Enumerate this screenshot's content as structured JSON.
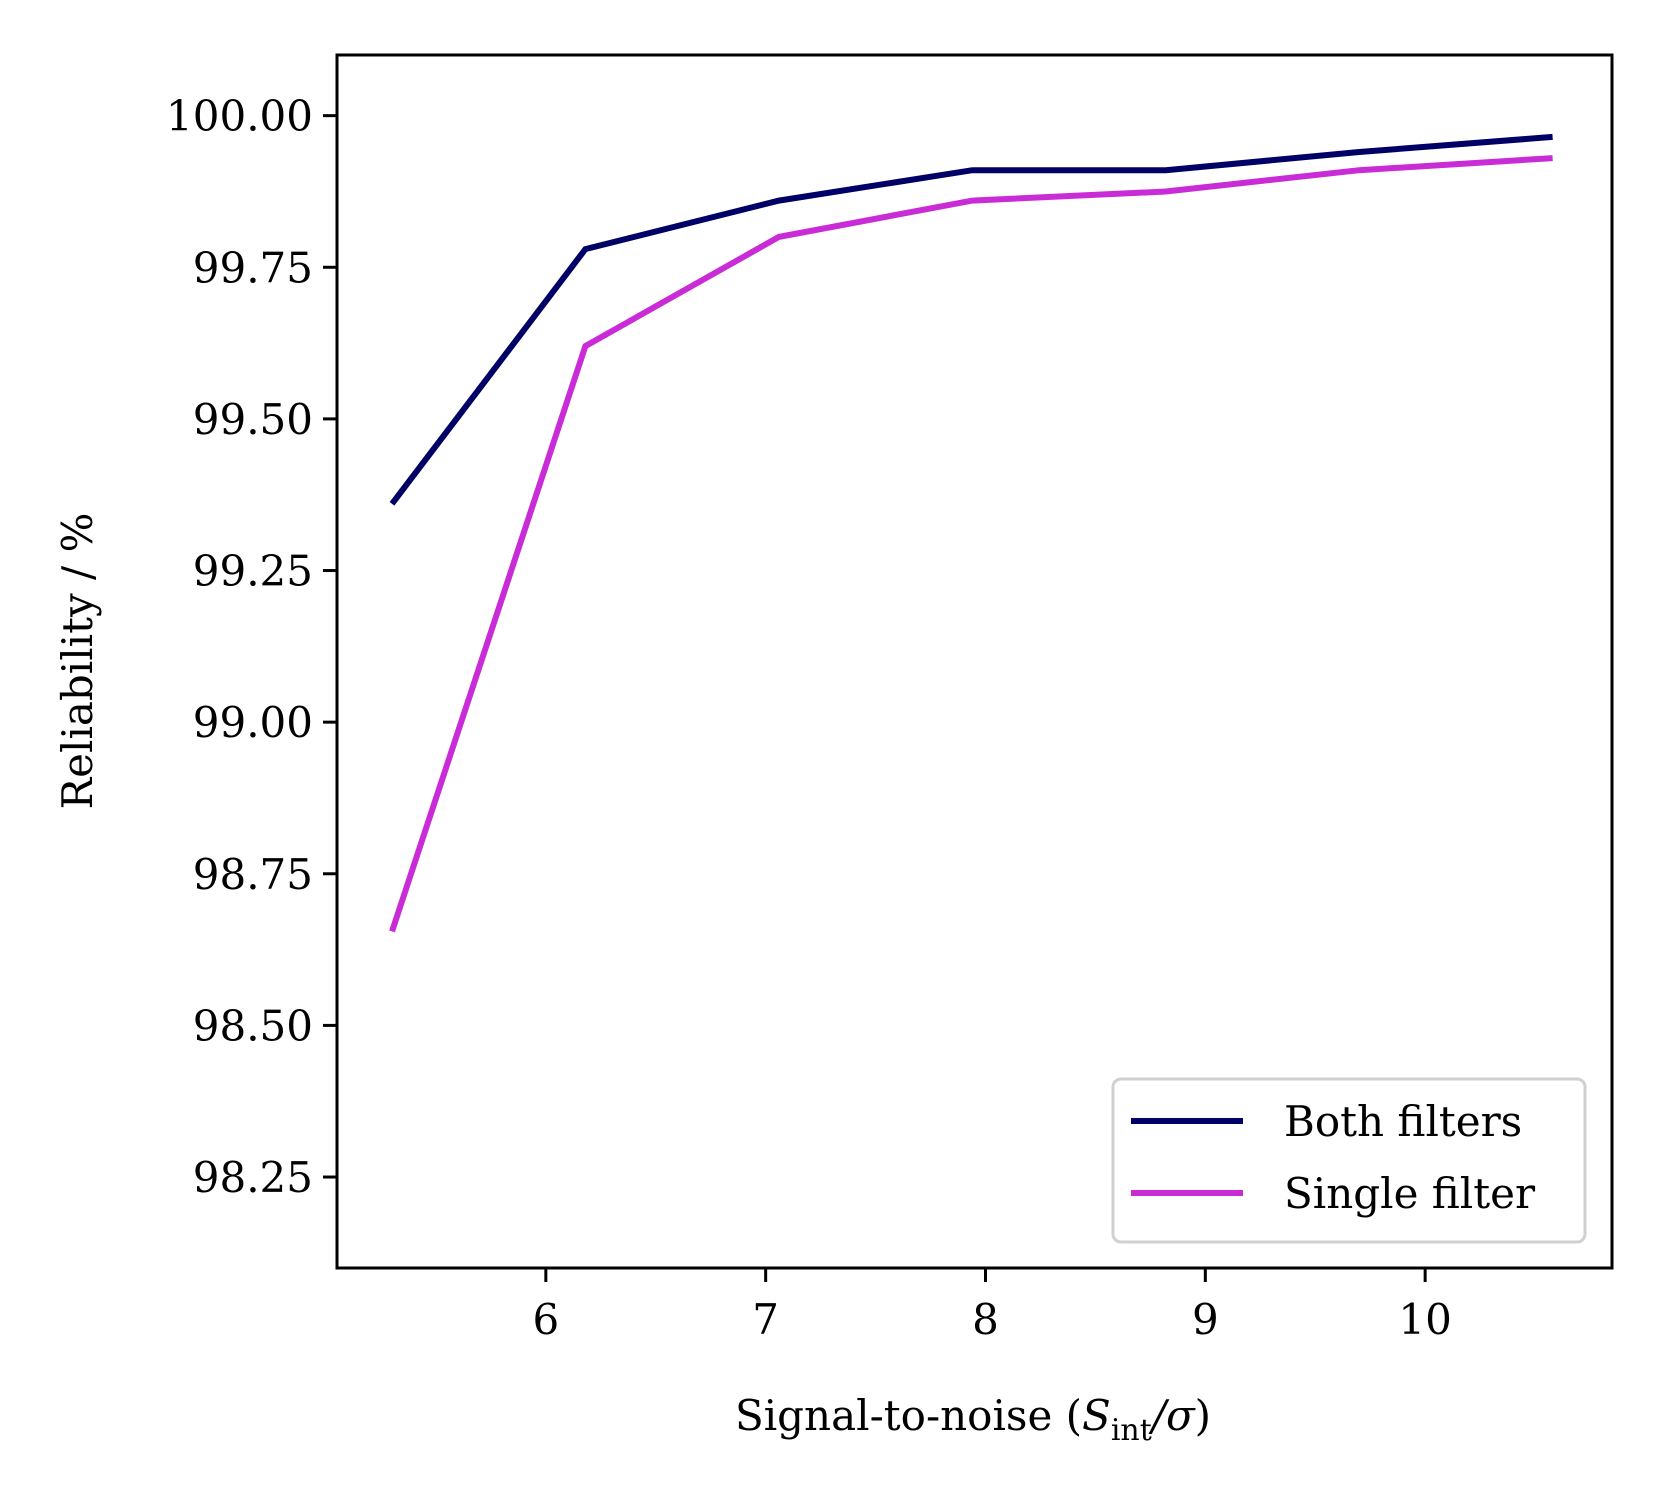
{
  "chart_data": {
    "type": "line",
    "title": "",
    "xlabel": "Signal-to-noise (",
    "xlabel_math_s": "S",
    "xlabel_math_sub": "int",
    "xlabel_math_sigma": "/σ",
    "xlabel_close": ")",
    "ylabel": "Reliability / %",
    "xlim": [
      5.05,
      10.85
    ],
    "ylim": [
      98.1,
      100.1
    ],
    "xticks": [
      6,
      7,
      8,
      9,
      10
    ],
    "xtick_labels": [
      "6",
      "7",
      "8",
      "9",
      "10"
    ],
    "yticks": [
      98.25,
      98.5,
      98.75,
      99.0,
      99.25,
      99.5,
      99.75,
      100.0
    ],
    "ytick_labels": [
      "98.25",
      "98.50",
      "98.75",
      "99.00",
      "99.25",
      "99.50",
      "99.75",
      "100.00"
    ],
    "x": [
      5.3,
      6.18,
      7.06,
      7.94,
      8.82,
      9.7,
      10.58
    ],
    "series": [
      {
        "name": "Both filters",
        "color": "#000066",
        "values": [
          99.36,
          99.78,
          99.86,
          99.91,
          99.91,
          99.94,
          99.965
        ]
      },
      {
        "name": "Single filter",
        "color": "#c92bd6",
        "values": [
          98.655,
          99.62,
          99.8,
          99.86,
          99.875,
          99.91,
          99.93
        ]
      }
    ],
    "legend_position": "lower-right",
    "grid": false
  }
}
